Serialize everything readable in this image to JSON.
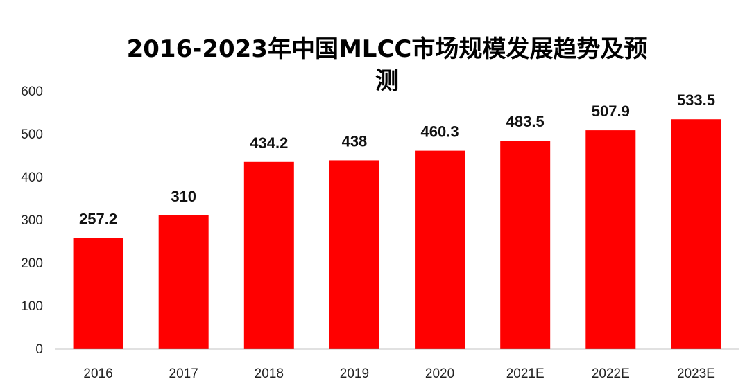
{
  "chart_data": {
    "type": "bar",
    "title_lines": [
      "2016-2023年中国MLCC市场规模发展趋势及预",
      "测"
    ],
    "categories": [
      "2016",
      "2017",
      "2018",
      "2019",
      "2020",
      "2021E",
      "2022E",
      "2023E"
    ],
    "values": [
      257.2,
      310,
      434.2,
      438,
      460.3,
      483.5,
      507.9,
      533.5
    ],
    "data_labels": [
      "257.2",
      "310",
      "434.2",
      "438",
      "460.3",
      "483.5",
      "507.9",
      "533.5"
    ],
    "y_ticks": [
      "0",
      "100",
      "200",
      "300",
      "400",
      "500",
      "600"
    ],
    "ylim": [
      0,
      600
    ],
    "grid": false,
    "legend": "none",
    "bar_color": "#ff0000",
    "axis_color": "#888888"
  }
}
